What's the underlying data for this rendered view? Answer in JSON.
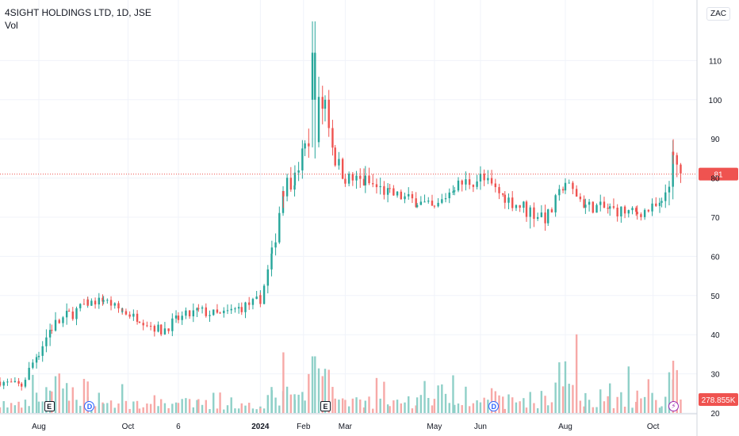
{
  "header": {
    "title": "4SIGHT HOLDINGS LTD, 1D, JSE",
    "volume_label": "Vol",
    "currency": "ZAC"
  },
  "events": [
    {
      "type": "earnings",
      "label": "E",
      "date": "2023-08-08"
    },
    {
      "type": "dividend",
      "label": "D",
      "date": "2023-09-05"
    },
    {
      "type": "earnings",
      "label": "E",
      "date": "2024-02-16"
    },
    {
      "type": "dividend",
      "label": "D",
      "date": "2024-06-12"
    },
    {
      "type": "split",
      "label": "⚡",
      "date": "2024-10-15"
    }
  ],
  "colors": {
    "up": "#26a69a",
    "down": "#ef5350",
    "up_volume": "#8fd0c8",
    "down_volume": "#f7a9a7",
    "last_price": "#ef5350",
    "grid": "#f0f3fa",
    "axis_text": "#131722"
  },
  "chart_data": {
    "type": "candlestick",
    "title": "4SIGHT HOLDINGS LTD, 1D, JSE",
    "x_tick_labels": [
      {
        "label": "Aug",
        "date": "2023-08-01"
      },
      {
        "label": "Oct",
        "date": "2023-10-02"
      },
      {
        "label": "6",
        "date": "2023-11-06"
      },
      {
        "label": "2024",
        "date": "2024-01-02"
      },
      {
        "label": "Feb",
        "date": "2024-02-01"
      },
      {
        "label": "Mar",
        "date": "2024-03-01"
      },
      {
        "label": "May",
        "date": "2024-05-02"
      },
      {
        "label": "Jun",
        "date": "2024-06-03"
      },
      {
        "label": "Aug",
        "date": "2024-08-01"
      },
      {
        "label": "Oct",
        "date": "2024-10-01"
      }
    ],
    "y_ticks": [
      "20",
      "30",
      "40",
      "50",
      "60",
      "70",
      "80",
      "90",
      "100",
      "110"
    ],
    "y_range": [
      20,
      120
    ],
    "last_price": {
      "value": 81,
      "label": "81"
    },
    "volume": {
      "last_label": "278.855K"
    },
    "grid": true,
    "price_path": [
      {
        "date": "2023-07-05",
        "close": 28,
        "high": 30,
        "low": 25,
        "volume": 0.2
      },
      {
        "date": "2023-07-20",
        "close": 27,
        "high": 29,
        "low": 24,
        "volume": 0.15
      },
      {
        "date": "2023-08-01",
        "close": 36,
        "high": 40,
        "low": 28,
        "volume": 0.3
      },
      {
        "date": "2023-08-10",
        "close": 42,
        "high": 46,
        "low": 35,
        "volume": 0.6
      },
      {
        "date": "2023-08-22",
        "close": 45,
        "high": 50,
        "low": 40,
        "volume": 0.4
      },
      {
        "date": "2023-09-04",
        "close": 48,
        "high": 50,
        "low": 44,
        "volume": 0.5
      },
      {
        "date": "2023-09-15",
        "close": 49,
        "high": 51,
        "low": 46,
        "volume": 0.25
      },
      {
        "date": "2023-09-28",
        "close": 46,
        "high": 48,
        "low": 43,
        "volume": 0.2
      },
      {
        "date": "2023-10-10",
        "close": 44,
        "high": 47,
        "low": 41,
        "volume": 0.2
      },
      {
        "date": "2023-10-25",
        "close": 41,
        "high": 44,
        "low": 36,
        "volume": 0.25
      },
      {
        "date": "2023-11-06",
        "close": 44,
        "high": 48,
        "low": 40,
        "volume": 0.2
      },
      {
        "date": "2023-11-20",
        "close": 46,
        "high": 51,
        "low": 42,
        "volume": 0.2
      },
      {
        "date": "2023-12-05",
        "close": 45,
        "high": 49,
        "low": 42,
        "volume": 0.15
      },
      {
        "date": "2023-12-20",
        "close": 47,
        "high": 50,
        "low": 42,
        "volume": 0.15
      },
      {
        "date": "2024-01-02",
        "close": 49,
        "high": 52,
        "low": 45,
        "volume": 0.2
      },
      {
        "date": "2024-01-10",
        "close": 60,
        "high": 64,
        "low": 50,
        "volume": 0.35
      },
      {
        "date": "2024-01-18",
        "close": 78,
        "high": 82,
        "low": 65,
        "volume": 0.4
      },
      {
        "date": "2024-01-26",
        "close": 80,
        "high": 84,
        "low": 73,
        "volume": 0.3
      },
      {
        "date": "2024-02-02",
        "close": 88,
        "high": 95,
        "low": 82,
        "volume": 0.35
      },
      {
        "date": "2024-02-09",
        "close": 95,
        "high": 120,
        "low": 85,
        "volume": 1.0
      },
      {
        "date": "2024-02-16",
        "close": 100,
        "high": 110,
        "low": 88,
        "volume": 0.7
      },
      {
        "date": "2024-02-23",
        "close": 85,
        "high": 95,
        "low": 80,
        "volume": 0.4
      },
      {
        "date": "2024-03-01",
        "close": 80,
        "high": 85,
        "low": 75,
        "volume": 0.3
      },
      {
        "date": "2024-03-15",
        "close": 79,
        "high": 88,
        "low": 75,
        "volume": 0.25
      },
      {
        "date": "2024-04-01",
        "close": 76,
        "high": 80,
        "low": 71,
        "volume": 0.25
      },
      {
        "date": "2024-04-20",
        "close": 74,
        "high": 79,
        "low": 70,
        "volume": 0.25
      },
      {
        "date": "2024-05-02",
        "close": 72,
        "high": 76,
        "low": 67,
        "volume": 0.35
      },
      {
        "date": "2024-05-16",
        "close": 78,
        "high": 82,
        "low": 73,
        "volume": 0.5
      },
      {
        "date": "2024-06-03",
        "close": 80,
        "high": 90,
        "low": 77,
        "volume": 0.4
      },
      {
        "date": "2024-06-20",
        "close": 75,
        "high": 80,
        "low": 72,
        "volume": 0.25
      },
      {
        "date": "2024-07-05",
        "close": 72,
        "high": 76,
        "low": 61,
        "volume": 0.3
      },
      {
        "date": "2024-07-20",
        "close": 70,
        "high": 75,
        "low": 62,
        "volume": 0.3
      },
      {
        "date": "2024-08-01",
        "close": 79,
        "high": 80,
        "low": 73,
        "volume": 0.9
      },
      {
        "date": "2024-08-15",
        "close": 73,
        "high": 78,
        "low": 69,
        "volume": 0.35
      },
      {
        "date": "2024-09-01",
        "close": 72,
        "high": 78,
        "low": 68,
        "volume": 0.3
      },
      {
        "date": "2024-09-20",
        "close": 71,
        "high": 76,
        "low": 68,
        "volume": 0.3
      },
      {
        "date": "2024-10-07",
        "close": 73,
        "high": 75,
        "low": 66,
        "volume": 0.3
      },
      {
        "date": "2024-10-15",
        "close": 84,
        "high": 90,
        "low": 69,
        "volume": 0.95
      },
      {
        "date": "2024-10-22",
        "close": 81,
        "high": 89,
        "low": 78,
        "volume": 0.3
      }
    ]
  }
}
